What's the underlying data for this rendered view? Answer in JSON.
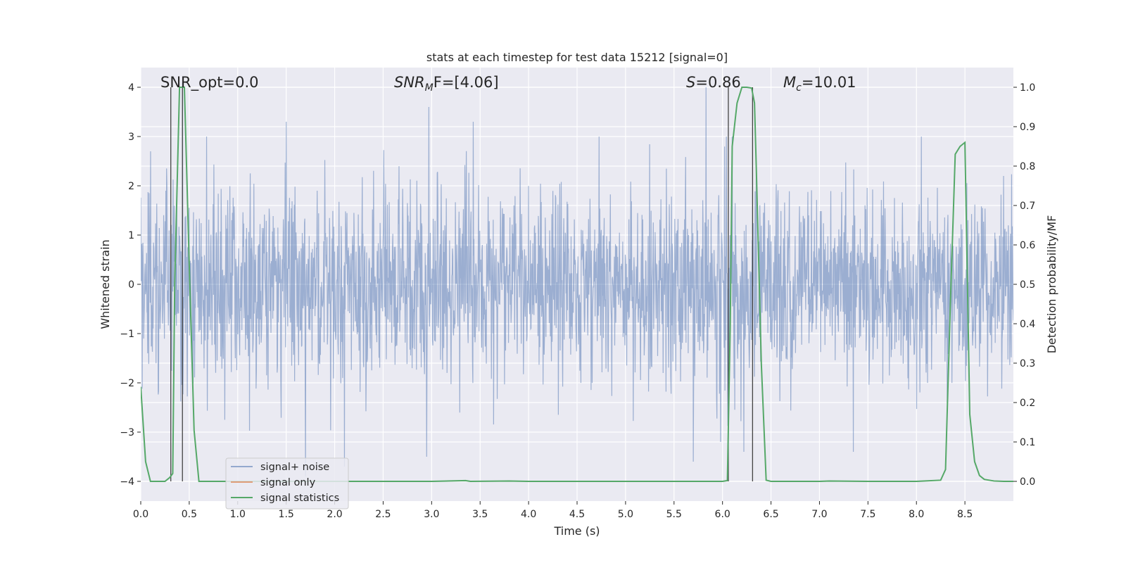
{
  "chart_data": {
    "type": "line",
    "title": "stats at each timestep for test data 15212 [signal=0]",
    "xlabel": "Time (s)",
    "ylabel": "Whitened strain",
    "ylabel_right": "Detection probability/MF",
    "xlim": [
      0.0,
      9.0
    ],
    "ylim": [
      -4.4,
      4.4
    ],
    "ylim_right": [
      -0.05,
      1.05
    ],
    "xticks": [
      0.0,
      0.5,
      1.0,
      1.5,
      2.0,
      2.5,
      3.0,
      3.5,
      4.0,
      4.5,
      5.0,
      5.5,
      6.0,
      6.5,
      7.0,
      7.5,
      8.0,
      8.5
    ],
    "xtick_labels": [
      "0.0",
      "0.5",
      "1.0",
      "1.5",
      "2.0",
      "2.5",
      "3.0",
      "3.5",
      "4.0",
      "4.5",
      "5.0",
      "5.5",
      "6.0",
      "6.5",
      "7.0",
      "7.5",
      "8.0",
      "8.5"
    ],
    "yticks": [
      -4,
      -3,
      -2,
      -1,
      0,
      1,
      2,
      3,
      4
    ],
    "ytick_labels": [
      "−4",
      "−3",
      "−2",
      "−1",
      "0",
      "1",
      "2",
      "3",
      "4"
    ],
    "yticks_right": [
      0.0,
      0.1,
      0.2,
      0.3,
      0.4,
      0.5,
      0.6,
      0.7,
      0.8,
      0.9,
      1.0
    ],
    "ytick_labels_right": [
      "0.0",
      "0.1",
      "0.2",
      "0.3",
      "0.4",
      "0.5",
      "0.6",
      "0.7",
      "0.8",
      "0.9",
      "1.0"
    ],
    "grid": true,
    "legend": {
      "position": "lower-left",
      "entries": [
        {
          "label": "signal+ noise",
          "color": "#4c72b0"
        },
        {
          "label": "signal only",
          "color": "#dd8452"
        },
        {
          "label": "signal statistics",
          "color": "#55a868"
        }
      ]
    },
    "annotations": {
      "snr_opt": "SNR_opt=0.0",
      "snr_mf_main": "SNR",
      "snr_mf_sub": "M",
      "snr_mf_rest": "F=[4.06]",
      "s_main": "S",
      "s_rest": "=0.86",
      "mc_main": "M",
      "mc_sub": "c",
      "mc_rest": "=10.01"
    },
    "noise_series": {
      "name": "signal+ noise",
      "color": "#4c72b0",
      "t_start": 0.0,
      "t_end": 9.0,
      "sigma": 0.95,
      "peaks": [
        {
          "x": 0.43,
          "y": 4.1
        },
        {
          "x": 0.68,
          "y": 3.0
        },
        {
          "x": 1.5,
          "y": 3.3
        },
        {
          "x": 2.97,
          "y": 3.6
        },
        {
          "x": 3.43,
          "y": 3.3
        },
        {
          "x": 5.83,
          "y": 4.0
        },
        {
          "x": 5.7,
          "y": -3.6
        },
        {
          "x": 2.95,
          "y": -3.5
        },
        {
          "x": 1.7,
          "y": -3.9
        },
        {
          "x": 2.1,
          "y": -3.7
        },
        {
          "x": 7.35,
          "y": -3.4
        },
        {
          "x": 6.22,
          "y": -3.4
        },
        {
          "x": 5.98,
          "y": -3.2
        },
        {
          "x": 0.1,
          "y": 2.7
        },
        {
          "x": 8.9,
          "y": 2.2
        }
      ]
    },
    "series": [
      {
        "name": "signal statistics",
        "color": "#55a868",
        "x": [
          0.0,
          0.05,
          0.1,
          0.15,
          0.2,
          0.25,
          0.3,
          0.33,
          0.35,
          0.4,
          0.45,
          0.5,
          0.55,
          0.6,
          1.0,
          2.0,
          3.0,
          3.35,
          3.4,
          3.8,
          4.0,
          5.0,
          6.0,
          6.05,
          6.08,
          6.1,
          6.15,
          6.2,
          6.25,
          6.3,
          6.33,
          6.35,
          6.4,
          6.45,
          6.5,
          7.0,
          7.1,
          7.5,
          8.0,
          8.25,
          8.3,
          8.35,
          8.4,
          8.45,
          8.5,
          8.55,
          8.6,
          8.65,
          8.7,
          8.8,
          8.9,
          9.0
        ],
        "y": [
          0.24,
          0.05,
          0.0,
          0.0,
          0.0,
          0.0,
          0.01,
          0.02,
          0.5,
          1.0,
          1.0,
          0.55,
          0.13,
          0.0,
          0.0,
          0.0,
          0.0,
          0.002,
          0.0,
          0.001,
          0.0,
          0.0,
          0.0,
          0.002,
          0.4,
          0.85,
          0.96,
          1.0,
          1.0,
          0.998,
          0.96,
          0.78,
          0.3,
          0.003,
          0.0,
          0.0,
          0.001,
          0.0,
          0.0,
          0.003,
          0.03,
          0.45,
          0.83,
          0.85,
          0.86,
          0.17,
          0.05,
          0.015,
          0.005,
          0.001,
          0.0,
          0.0
        ]
      }
    ],
    "vlines": [
      0.31,
      0.43,
      6.06,
      6.31
    ]
  }
}
